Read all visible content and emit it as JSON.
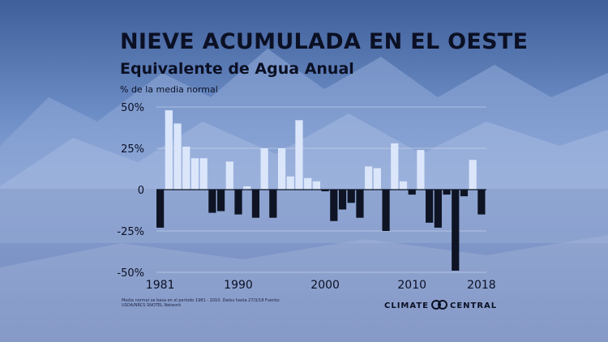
{
  "title": "NIEVE ACUMULADA EN EL OESTE",
  "subtitle": "Equivalente de Agua Anual",
  "footnote": "Media normal se basa en el período 1981 - 2010. Datos hasta 27/3/18 Fuente: USDA/NRCS SNOTEL Network",
  "logo": {
    "left": "CLIMATE",
    "right": "CENTRAL"
  },
  "colors": {
    "positive": "#dbe6fb",
    "negative": "#0e1424",
    "text": "#0b1024"
  },
  "chart_data": {
    "type": "bar",
    "ylabel": "% de la media normal",
    "ylim": [
      -50,
      50
    ],
    "y_ticks": [
      {
        "value": 50,
        "label": "50%"
      },
      {
        "value": 25,
        "label": "25%"
      },
      {
        "value": 0,
        "label": "0"
      },
      {
        "value": -25,
        "label": "-25%"
      },
      {
        "value": -50,
        "label": "-50%"
      }
    ],
    "x_tick_labels": [
      "1981",
      "1990",
      "2000",
      "2010",
      "2018"
    ],
    "grid": true,
    "categories": [
      "1981",
      "1982",
      "1983",
      "1984",
      "1985",
      "1986",
      "1987",
      "1988",
      "1989",
      "1990",
      "1991",
      "1992",
      "1993",
      "1994",
      "1995",
      "1996",
      "1997",
      "1998",
      "1999",
      "2000",
      "2001",
      "2002",
      "2003",
      "2004",
      "2005",
      "2006",
      "2007",
      "2008",
      "2009",
      "2010",
      "2011",
      "2012",
      "2013",
      "2014",
      "2015",
      "2016",
      "2017",
      "2018"
    ],
    "values": [
      -23,
      48,
      40,
      26,
      19,
      19,
      -14,
      -13,
      17,
      -15,
      2,
      -17,
      25,
      -17,
      25,
      8,
      42,
      7,
      5,
      -1,
      -19,
      -12,
      -8,
      -17,
      14,
      13,
      -25,
      28,
      5,
      -3,
      24,
      -20,
      -23,
      -3,
      -49,
      -4,
      18,
      -15
    ]
  }
}
